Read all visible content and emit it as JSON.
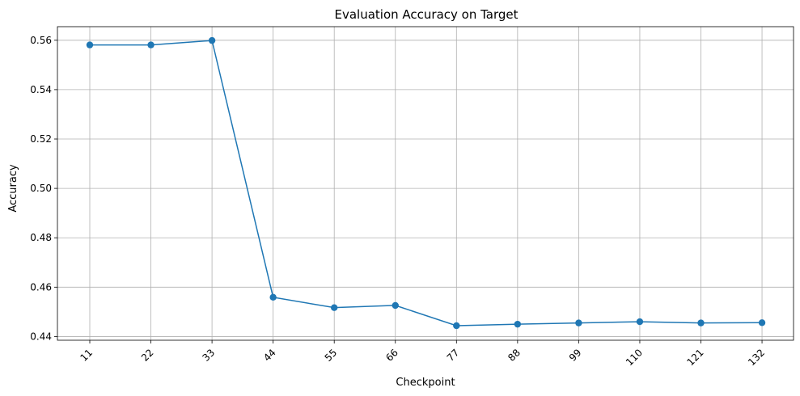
{
  "chart_data": {
    "type": "line",
    "title": "Evaluation Accuracy on Target",
    "xlabel": "Checkpoint",
    "ylabel": "Accuracy",
    "categories": [
      "11",
      "22",
      "33",
      "44",
      "55",
      "66",
      "77",
      "88",
      "99",
      "110",
      "121",
      "132"
    ],
    "series": [
      {
        "name": "Accuracy",
        "color": "#1f77b4",
        "values": [
          0.5581,
          0.5581,
          0.5599,
          0.4559,
          0.4517,
          0.4526,
          0.4444,
          0.445,
          0.4455,
          0.446,
          0.4455,
          0.4456
        ]
      }
    ],
    "ylim": [
      0.4385,
      0.5655
    ],
    "yticks": [
      0.44,
      0.46,
      0.48,
      0.5,
      0.52,
      0.54,
      0.56
    ],
    "ytick_labels": [
      "0.44",
      "0.46",
      "0.48",
      "0.50",
      "0.52",
      "0.54",
      "0.56"
    ],
    "grid": true,
    "marker": "circle",
    "xtick_rotation": "45deg"
  }
}
